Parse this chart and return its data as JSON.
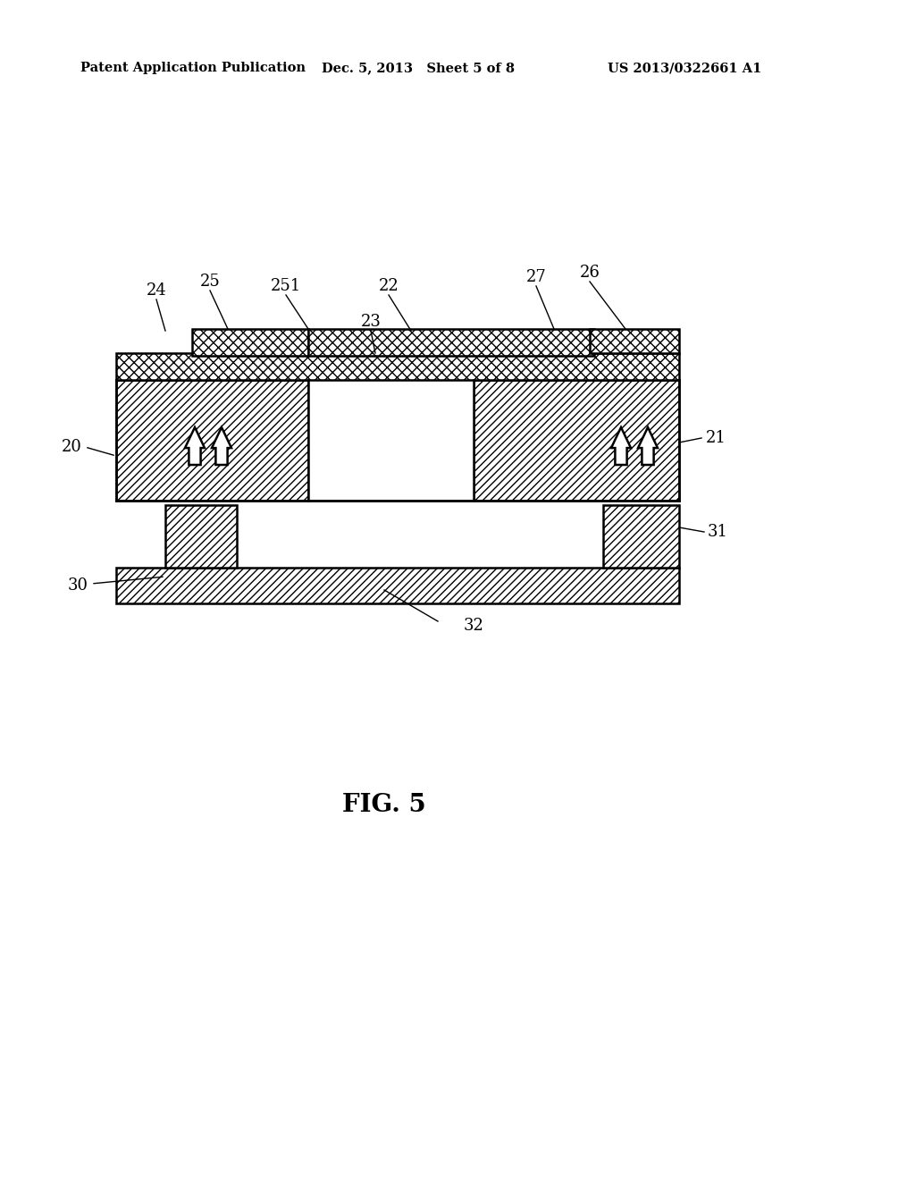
{
  "background_color": "#ffffff",
  "line_color": "#000000",
  "fig_label": "FIG. 5",
  "header_left": "Patent Application Publication",
  "header_mid": "Dec. 5, 2013   Sheet 5 of 8",
  "header_right": "US 2013/0322661 A1"
}
